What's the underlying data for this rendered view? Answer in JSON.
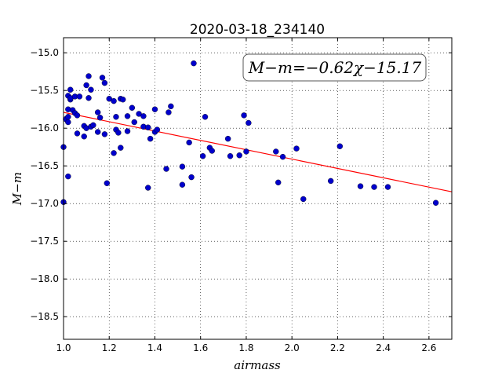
{
  "chart_data": {
    "type": "scatter",
    "title": "2020-03-18_234140",
    "xlabel": "airmass",
    "ylabel": "M−m",
    "xlim": [
      1.0,
      2.7
    ],
    "ylim": [
      -18.8,
      -14.8
    ],
    "x_ticks": [
      1.0,
      1.2,
      1.4,
      1.6,
      1.8,
      2.0,
      2.2,
      2.4,
      2.6
    ],
    "x_tick_labels": [
      "1.0",
      "1.2",
      "1.4",
      "1.6",
      "1.8",
      "2.0",
      "2.2",
      "2.4",
      "2.6"
    ],
    "y_ticks": [
      -15.0,
      -15.5,
      -16.0,
      -16.5,
      -17.0,
      -17.5,
      -18.0,
      -18.5
    ],
    "y_tick_labels": [
      "−15.0",
      "−15.5",
      "−16.0",
      "−16.5",
      "−17.0",
      "−17.5",
      "−18.0",
      "−18.5"
    ],
    "grid": true,
    "annotation": "M−m=−0.62χ−15.17",
    "fit": {
      "slope": -0.62,
      "intercept": -15.17,
      "color": "#ff0000"
    },
    "point_color": "#0000cc",
    "points": [
      [
        1.0,
        -16.25
      ],
      [
        1.0,
        -16.98
      ],
      [
        1.01,
        -15.88
      ],
      [
        1.02,
        -15.85
      ],
      [
        1.02,
        -15.92
      ],
      [
        1.02,
        -15.57
      ],
      [
        1.02,
        -15.75
      ],
      [
        1.02,
        -16.64
      ],
      [
        1.03,
        -15.49
      ],
      [
        1.03,
        -15.62
      ],
      [
        1.03,
        -15.6
      ],
      [
        1.04,
        -15.76
      ],
      [
        1.05,
        -15.58
      ],
      [
        1.05,
        -15.8
      ],
      [
        1.06,
        -15.83
      ],
      [
        1.06,
        -16.07
      ],
      [
        1.07,
        -15.58
      ],
      [
        1.09,
        -15.97
      ],
      [
        1.09,
        -16.11
      ],
      [
        1.1,
        -16.0
      ],
      [
        1.1,
        -15.43
      ],
      [
        1.11,
        -15.6
      ],
      [
        1.11,
        -15.31
      ],
      [
        1.12,
        -15.98
      ],
      [
        1.12,
        -15.49
      ],
      [
        1.13,
        -15.96
      ],
      [
        1.15,
        -15.79
      ],
      [
        1.15,
        -16.05
      ],
      [
        1.16,
        -15.86
      ],
      [
        1.17,
        -15.33
      ],
      [
        1.18,
        -15.4
      ],
      [
        1.18,
        -16.08
      ],
      [
        1.19,
        -16.73
      ],
      [
        1.2,
        -15.61
      ],
      [
        1.22,
        -15.64
      ],
      [
        1.22,
        -16.33
      ],
      [
        1.23,
        -15.85
      ],
      [
        1.23,
        -16.02
      ],
      [
        1.24,
        -16.06
      ],
      [
        1.25,
        -16.26
      ],
      [
        1.25,
        -15.61
      ],
      [
        1.26,
        -15.62
      ],
      [
        1.28,
        -15.84
      ],
      [
        1.28,
        -16.04
      ],
      [
        1.3,
        -15.73
      ],
      [
        1.31,
        -15.92
      ],
      [
        1.33,
        -15.81
      ],
      [
        1.35,
        -15.84
      ],
      [
        1.35,
        -15.98
      ],
      [
        1.37,
        -15.99
      ],
      [
        1.37,
        -16.79
      ],
      [
        1.38,
        -16.14
      ],
      [
        1.4,
        -15.75
      ],
      [
        1.4,
        -16.05
      ],
      [
        1.41,
        -16.02
      ],
      [
        1.45,
        -16.54
      ],
      [
        1.46,
        -15.79
      ],
      [
        1.47,
        -15.71
      ],
      [
        1.52,
        -16.51
      ],
      [
        1.52,
        -16.75
      ],
      [
        1.55,
        -16.19
      ],
      [
        1.56,
        -16.65
      ],
      [
        1.57,
        -15.14
      ],
      [
        1.61,
        -16.37
      ],
      [
        1.62,
        -15.85
      ],
      [
        1.64,
        -16.26
      ],
      [
        1.65,
        -16.3
      ],
      [
        1.72,
        -16.14
      ],
      [
        1.73,
        -16.37
      ],
      [
        1.77,
        -16.36
      ],
      [
        1.79,
        -15.83
      ],
      [
        1.8,
        -16.31
      ],
      [
        1.81,
        -15.93
      ],
      [
        1.93,
        -16.31
      ],
      [
        1.94,
        -16.72
      ],
      [
        1.96,
        -16.38
      ],
      [
        2.02,
        -16.27
      ],
      [
        2.05,
        -16.94
      ],
      [
        2.17,
        -16.7
      ],
      [
        2.21,
        -16.24
      ],
      [
        2.3,
        -16.77
      ],
      [
        2.36,
        -16.78
      ],
      [
        2.42,
        -16.78
      ],
      [
        2.63,
        -16.99
      ]
    ]
  }
}
